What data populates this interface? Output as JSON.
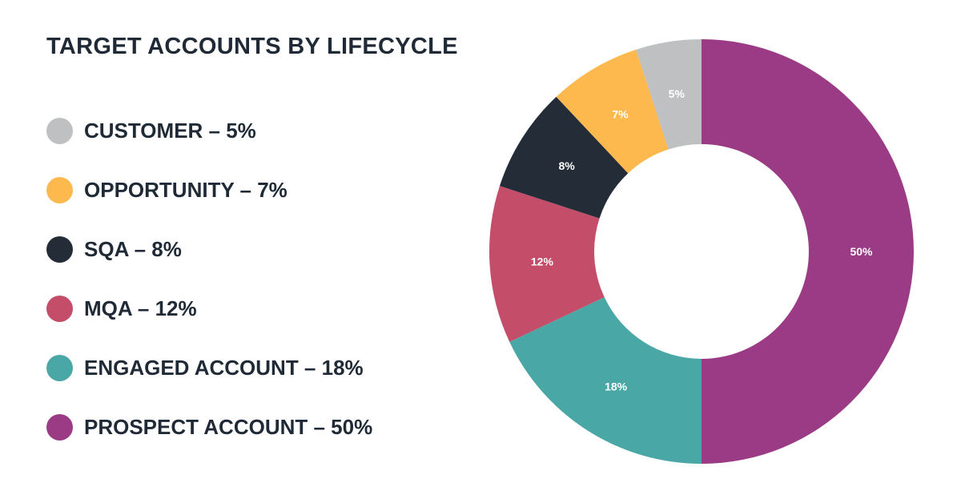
{
  "chart_data": {
    "type": "pie",
    "title": "TARGET ACCOUNTS BY LIFECYCLE",
    "categories": [
      "CUSTOMER",
      "OPPORTUNITY",
      "SQA",
      "MQA",
      "ENGAGED ACCOUNT",
      "PROSPECT ACCOUNT"
    ],
    "values": [
      5,
      7,
      8,
      12,
      18,
      50
    ],
    "unit": "%",
    "colors": [
      "#bfc0c2",
      "#fdb94d",
      "#232c37",
      "#c44d69",
      "#49a8a6",
      "#9b3b86"
    ],
    "legend": [
      "CUSTOMER – 5%",
      "OPPORTUNITY – 7%",
      "SQA – 8%",
      "MQA – 12%",
      "ENGAGED ACCOUNT – 18%",
      "PROSPECT ACCOUNT – 50%"
    ],
    "slice_labels": [
      "5%",
      "7%",
      "8%",
      "12%",
      "18%",
      "50%"
    ],
    "donut": true,
    "legend_position": "left"
  }
}
